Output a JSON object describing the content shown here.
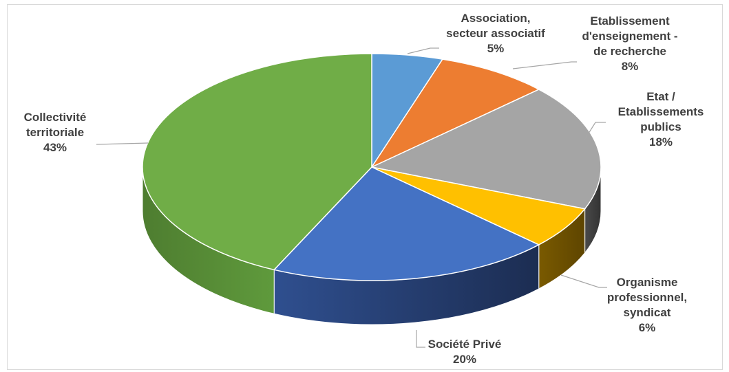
{
  "chart_data": {
    "type": "pie",
    "style": "3d",
    "slices": [
      {
        "label": [
          "Association,",
          "secteur associatif"
        ],
        "value": 5,
        "pct_text": "5%",
        "color": "#5b9bd5"
      },
      {
        "label": [
          "Etablissement",
          "d'enseignement -",
          "de recherche"
        ],
        "value": 8,
        "pct_text": "8%",
        "color": "#ed7d31"
      },
      {
        "label": [
          "Etat /",
          "Etablissements",
          "publics"
        ],
        "value": 18,
        "pct_text": "18%",
        "color": "#a5a5a5"
      },
      {
        "label": [
          "Organisme",
          "professionnel,",
          "syndicat"
        ],
        "value": 6,
        "pct_text": "6%",
        "color": "#ffc000"
      },
      {
        "label": [
          "Société Privé"
        ],
        "value": 20,
        "pct_text": "20%",
        "color": "#4472c4"
      },
      {
        "label": [
          "Collectivité",
          "territoriale"
        ],
        "value": 43,
        "pct_text": "43%",
        "color": "#70ad47"
      }
    ]
  }
}
